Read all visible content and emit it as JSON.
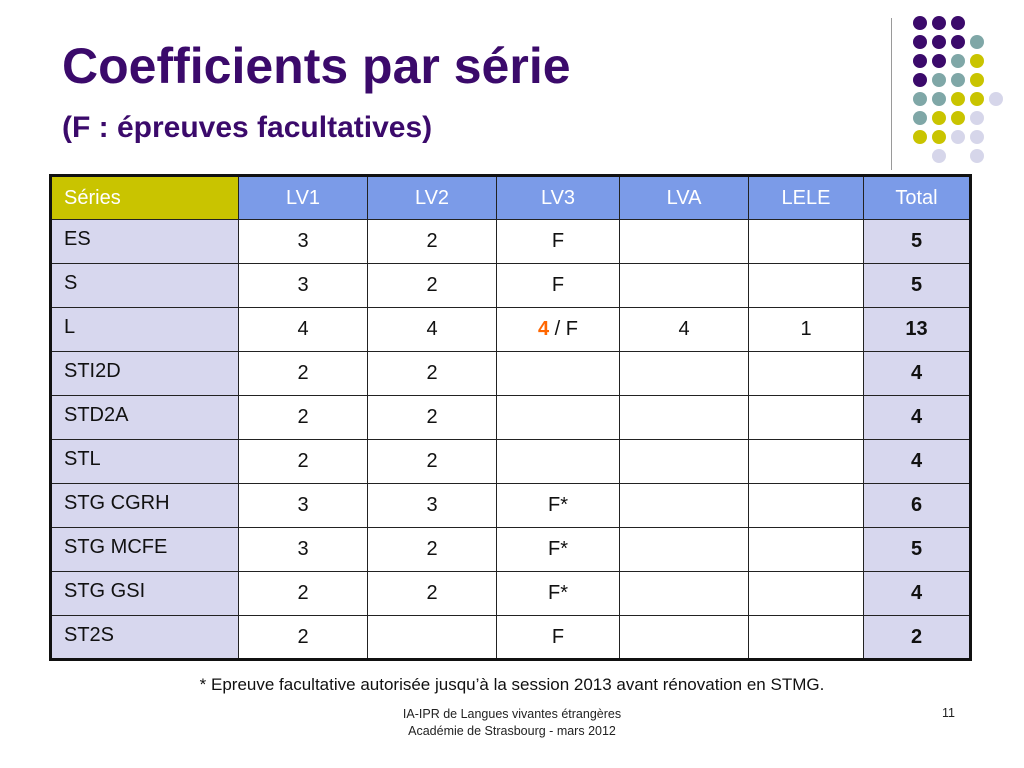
{
  "slide": {
    "title": "Coefficients par série",
    "subtitle": "(F : épreuves facultatives)",
    "footnote": "* Epreuve facultative autorisée jusqu’à la session 2013 avant rénovation en STMG.",
    "footer_line1": "IA-IPR de Langues vivantes étrangères",
    "footer_line2": "Académie de Strasbourg - mars 2012",
    "page_number": "11"
  },
  "colors": {
    "title": "#3b0a6b",
    "header_series": "#c9c400",
    "header_columns": "#7b9be8",
    "row_band": "#d7d7ee",
    "teal": "#5f9ea0",
    "olive": "#bdbd00",
    "orange": "#ff6600",
    "blue": "#5b8ef0",
    "red": "#ee0000"
  },
  "table": {
    "headers": [
      "Séries",
      "LV1",
      "LV2",
      "LV3",
      "LVA",
      "LELE",
      "Total"
    ],
    "rows": [
      {
        "serie": "ES",
        "lv1": "3",
        "lv2": "2",
        "lv3": "F",
        "lva": "",
        "lele": "",
        "total": "5"
      },
      {
        "serie": "S",
        "lv1": "3",
        "lv2": "2",
        "lv3": "F",
        "lva": "",
        "lele": "",
        "total": "5"
      },
      {
        "serie": "L",
        "lv1": "4",
        "lv2": "4",
        "lv3_num": "4",
        "lv3_suffix": " / F",
        "lva": "4",
        "lele": "1",
        "total": "13"
      },
      {
        "serie": "STI2D",
        "lv1": "2",
        "lv2": "2",
        "lv3": "",
        "lva": "",
        "lele": "",
        "total": "4"
      },
      {
        "serie": "STD2A",
        "lv1": "2",
        "lv2": "2",
        "lv3": "",
        "lva": "",
        "lele": "",
        "total": "4"
      },
      {
        "serie": "STL",
        "lv1": "2",
        "lv2": "2",
        "lv3": "",
        "lva": "",
        "lele": "",
        "total": "4"
      },
      {
        "serie": "STG CGRH",
        "lv1": "3",
        "lv2": "3",
        "lv3": "F*",
        "lva": "",
        "lele": "",
        "total": "6"
      },
      {
        "serie": "STG MCFE",
        "lv1": "3",
        "lv2": "2",
        "lv3": "F*",
        "lva": "",
        "lele": "",
        "total": "5"
      },
      {
        "serie": "STG GSI",
        "lv1": "2",
        "lv2": "2",
        "lv3": "F*",
        "lva": "",
        "lele": "",
        "total": "4"
      },
      {
        "serie": "ST2S",
        "lv1": "2",
        "lv2": "",
        "lv3": "F",
        "lva": "",
        "lele": "",
        "total": "2"
      }
    ]
  }
}
